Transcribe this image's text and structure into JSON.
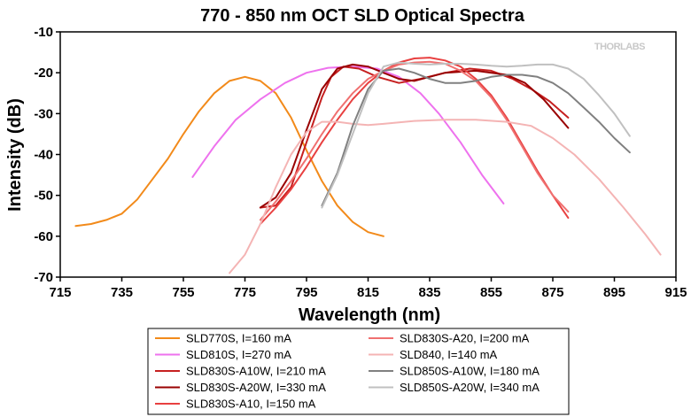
{
  "chart_data": {
    "type": "line",
    "title": "770 - 850 nm OCT SLD Optical Spectra",
    "xlabel": "Wavelength (nm)",
    "ylabel": "Intensity (dB)",
    "xlim": [
      715,
      915
    ],
    "ylim": [
      -70,
      -10
    ],
    "xticks": [
      715,
      735,
      755,
      775,
      795,
      815,
      835,
      855,
      875,
      895,
      915
    ],
    "yticks": [
      -10,
      -20,
      -30,
      -40,
      -50,
      -60,
      -70
    ],
    "grid": false,
    "legend_position": "bottom",
    "watermark": "THORLABS",
    "series": [
      {
        "name": "SLD770S, I=160 mA",
        "color": "#f28a1a",
        "x": [
          720,
          725,
          730,
          735,
          740,
          745,
          750,
          755,
          760,
          765,
          770,
          775,
          780,
          785,
          790,
          795,
          800,
          805,
          810,
          815,
          820
        ],
        "y": [
          -57.5,
          -57,
          -56,
          -54.5,
          -51,
          -46,
          -41,
          -35,
          -29.5,
          -25,
          -22,
          -21,
          -22,
          -25,
          -31,
          -39,
          -46.5,
          -52.5,
          -56.5,
          -59,
          -60
        ]
      },
      {
        "name": "SLD810S, I=270 mA",
        "color": "#ee72ee",
        "x": [
          758,
          765,
          772,
          780,
          788,
          795,
          802,
          810,
          818,
          825,
          832,
          838,
          845,
          852,
          859
        ],
        "y": [
          -45.5,
          -38,
          -31.5,
          -26.5,
          -22.5,
          -20,
          -18.8,
          -18.5,
          -19,
          -21,
          -25,
          -30,
          -37,
          -45,
          -52
        ]
      },
      {
        "name": "SLD830S-A10W, I=210 mA",
        "color": "#c62020",
        "x": [
          780,
          785,
          790,
          795,
          800,
          803,
          807,
          812,
          818,
          825,
          832,
          840,
          848,
          855,
          862,
          868,
          874,
          880
        ],
        "y": [
          -53,
          -52.5,
          -48,
          -37,
          -26,
          -21,
          -18.5,
          -19,
          -21,
          -22.5,
          -21.5,
          -20,
          -19,
          -19.5,
          -21.5,
          -24,
          -27,
          -31
        ]
      },
      {
        "name": "SLD830S-A20W, I=330 mA",
        "color": "#990000",
        "x": [
          780,
          785,
          790,
          795,
          800,
          805,
          810,
          815,
          820,
          825,
          830,
          835,
          840,
          850,
          860,
          866,
          872,
          876,
          880
        ],
        "y": [
          -53,
          -50.5,
          -44.5,
          -34,
          -24,
          -19,
          -18,
          -18.5,
          -20,
          -21.5,
          -22,
          -21,
          -20,
          -19.5,
          -20.5,
          -22.5,
          -26.5,
          -30,
          -33.5
        ]
      },
      {
        "name": "SLD830S-A10, I=150 mA",
        "color": "#e84040",
        "x": [
          780,
          785,
          790,
          795,
          800,
          805,
          810,
          815,
          820,
          825,
          830,
          835,
          840,
          845,
          850,
          855,
          860,
          865,
          870,
          875,
          880
        ],
        "y": [
          -57,
          -53,
          -48.5,
          -43,
          -37,
          -31.5,
          -26.5,
          -22.5,
          -19.5,
          -17.5,
          -16.5,
          -16.3,
          -17,
          -18.5,
          -21.5,
          -25.5,
          -31,
          -37.5,
          -44,
          -50,
          -55.5
        ]
      },
      {
        "name": "SLD830S-A20, I=200 mA",
        "color": "#f07070",
        "x": [
          780,
          785,
          790,
          795,
          800,
          805,
          810,
          815,
          820,
          825,
          830,
          835,
          840,
          845,
          850,
          855,
          860,
          865,
          870,
          875,
          880
        ],
        "y": [
          -56,
          -51.5,
          -46.5,
          -41,
          -35,
          -29.5,
          -25,
          -21.5,
          -19.5,
          -18,
          -17.5,
          -17.3,
          -17.8,
          -19.5,
          -22,
          -26,
          -31.5,
          -38,
          -44.5,
          -50,
          -54
        ]
      },
      {
        "name": "SLD840, I=140 mA",
        "color": "#f4b4b4",
        "x": [
          770,
          775,
          780,
          785,
          790,
          795,
          800,
          805,
          810,
          815,
          820,
          830,
          840,
          850,
          860,
          868,
          875,
          882,
          890,
          898,
          905,
          910
        ],
        "y": [
          -69,
          -64.5,
          -57,
          -48,
          -40,
          -34.5,
          -32,
          -32,
          -32.5,
          -32.8,
          -32.5,
          -31.8,
          -31.5,
          -31.5,
          -32,
          -33,
          -36,
          -40,
          -46,
          -53,
          -59.5,
          -64.5
        ]
      },
      {
        "name": "SLD850S-A10W, I=180 mA",
        "color": "#808080",
        "x": [
          800,
          805,
          810,
          815,
          820,
          825,
          830,
          835,
          840,
          845,
          850,
          855,
          860,
          865,
          870,
          875,
          880,
          885,
          890,
          895,
          900
        ],
        "y": [
          -52.5,
          -44.5,
          -33,
          -24,
          -19.5,
          -19,
          -20,
          -21.5,
          -22.5,
          -22.5,
          -22,
          -21,
          -20.5,
          -20.5,
          -21,
          -22.5,
          -25,
          -28.5,
          -32,
          -36,
          -39.5
        ]
      },
      {
        "name": "SLD850S-A20W, I=340 mA",
        "color": "#c0c0c0",
        "x": [
          800,
          805,
          810,
          815,
          820,
          825,
          830,
          835,
          840,
          845,
          850,
          855,
          860,
          865,
          870,
          875,
          880,
          885,
          890,
          895,
          900
        ],
        "y": [
          -53,
          -45,
          -35,
          -25,
          -18.5,
          -17.5,
          -17.8,
          -18,
          -17.8,
          -17.8,
          -18,
          -18.3,
          -18.5,
          -18.3,
          -18,
          -18,
          -19,
          -21.5,
          -25.5,
          -30,
          -35.5
        ]
      }
    ]
  }
}
